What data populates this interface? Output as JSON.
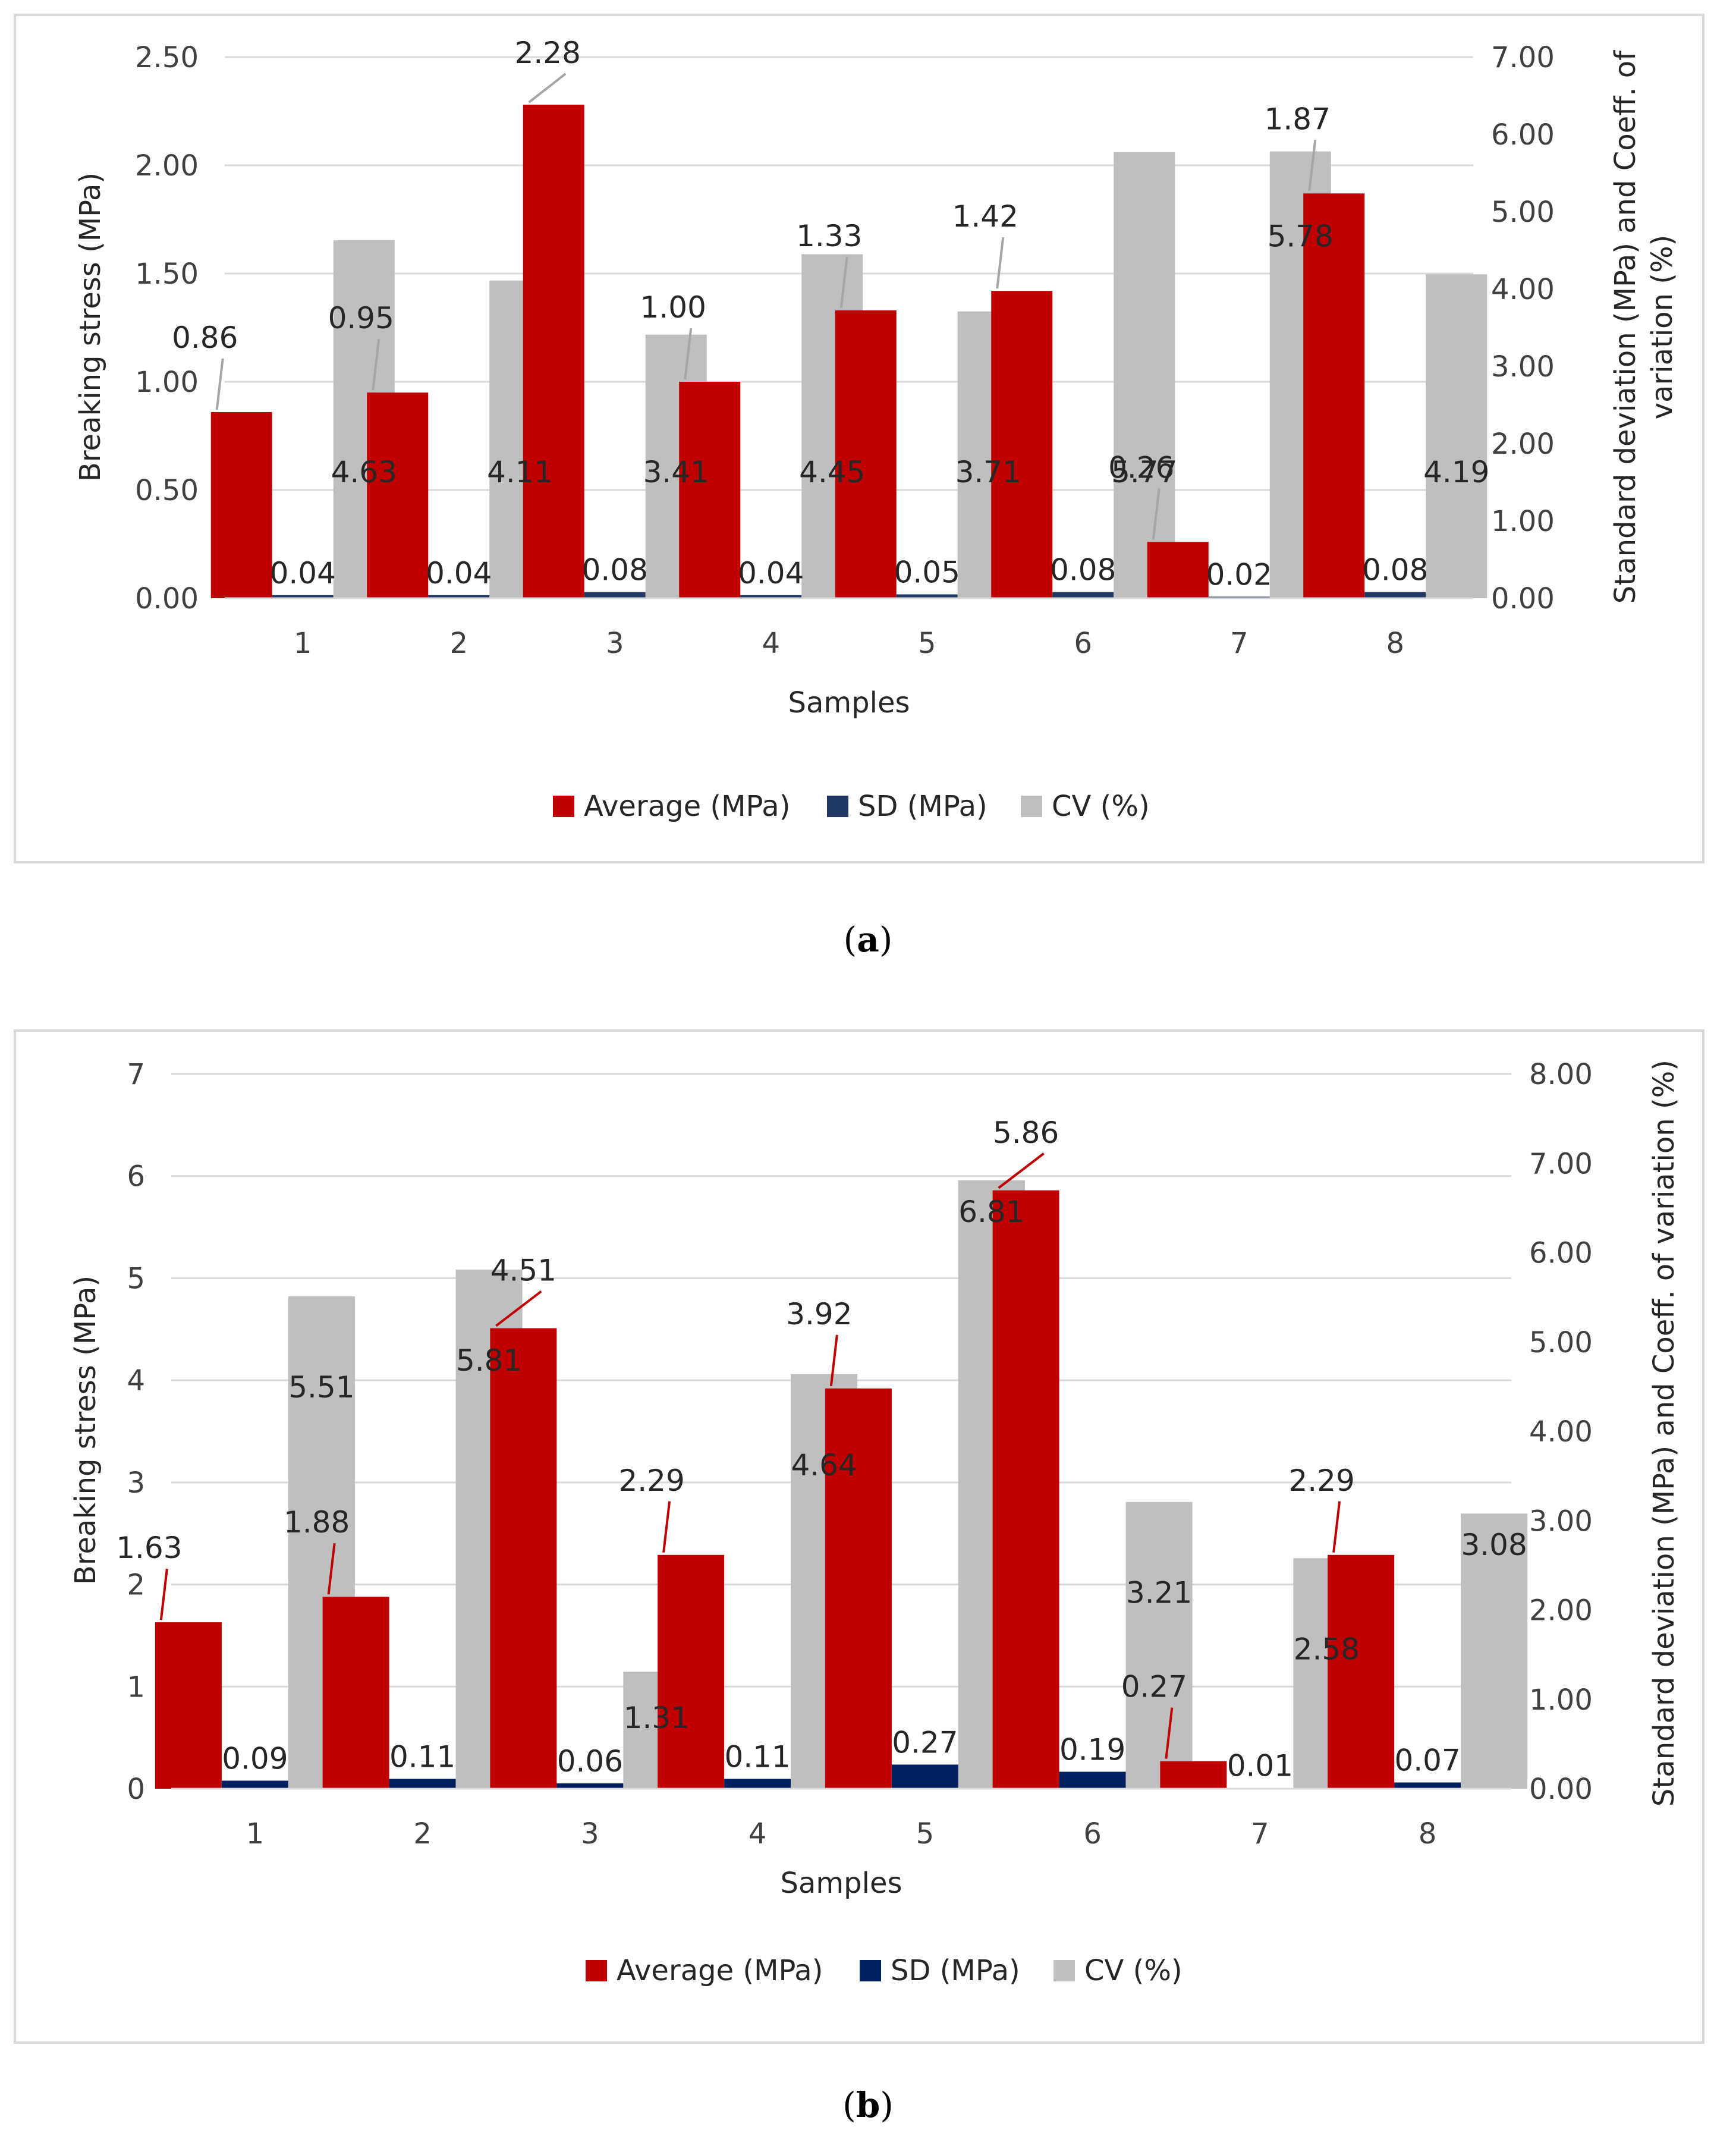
{
  "chart_data": [
    {
      "type": "bar",
      "panel": "a",
      "caption": "a",
      "categories": [
        "1",
        "2",
        "3",
        "4",
        "5",
        "6",
        "7",
        "8"
      ],
      "series": [
        {
          "name": "Average (MPa)",
          "axis": "left",
          "color": "#c00000",
          "values": [
            0.86,
            0.95,
            2.28,
            1.0,
            1.33,
            1.42,
            0.26,
            1.87
          ],
          "labels": [
            "0.86",
            "0.95",
            "2.28",
            "1.00",
            "1.33",
            "1.42",
            "0.26",
            "1.87"
          ]
        },
        {
          "name": "SD (MPa)",
          "axis": "right",
          "color": "#1f3864",
          "values": [
            0.04,
            0.04,
            0.08,
            0.04,
            0.05,
            0.08,
            0.02,
            0.08
          ],
          "labels": [
            "0.04",
            "0.04",
            "0.08",
            "0.04",
            "0.05",
            "0.08",
            "0.02",
            "0.08"
          ]
        },
        {
          "name": "CV (%)",
          "axis": "right",
          "color": "#bfbfbf",
          "values": [
            4.63,
            4.11,
            3.41,
            4.45,
            3.71,
            5.77,
            5.78,
            4.19
          ],
          "labels": [
            "4.63",
            "4.11",
            "3.41",
            "4.45",
            "3.71",
            "5.77",
            "5.78",
            "4.19"
          ]
        }
      ],
      "xlabel": "Samples",
      "ylabel": "Breaking stress (MPa)",
      "y2label_lines": [
        "Standard deviation (MPa) and Coeff. of",
        "variation (%)"
      ],
      "ylim": [
        0,
        2.5
      ],
      "y2lim": [
        0,
        7
      ],
      "yticks": [
        "0.00",
        "0.50",
        "1.00",
        "1.50",
        "2.00",
        "2.50"
      ],
      "y2ticks": [
        "0.00",
        "1.00",
        "2.00",
        "3.00",
        "4.00",
        "5.00",
        "6.00",
        "7.00"
      ],
      "leader_color": "#a6a6a6",
      "legend_position": "bottom",
      "grid": true
    },
    {
      "type": "bar",
      "panel": "b",
      "caption": "b",
      "categories": [
        "1",
        "2",
        "3",
        "4",
        "5",
        "6",
        "7",
        "8"
      ],
      "series": [
        {
          "name": "Average (MPa)",
          "axis": "left",
          "color": "#c00000",
          "values": [
            1.63,
            1.88,
            4.51,
            2.29,
            3.92,
            5.86,
            0.27,
            2.29
          ],
          "labels": [
            "1.63",
            "1.88",
            "4.51",
            "2.29",
            "3.92",
            "5.86",
            "0.27",
            "2.29"
          ]
        },
        {
          "name": "SD (MPa)",
          "axis": "right",
          "color": "#002060",
          "values": [
            0.09,
            0.11,
            0.06,
            0.11,
            0.27,
            0.19,
            0.01,
            0.07
          ],
          "labels": [
            "0.09",
            "0.11",
            "0.06",
            "0.11",
            "0.27",
            "0.19",
            "0.01",
            "0.07"
          ]
        },
        {
          "name": "CV (%)",
          "axis": "right",
          "color": "#bfbfbf",
          "values": [
            5.51,
            5.81,
            1.31,
            4.64,
            6.81,
            3.21,
            2.58,
            3.08
          ],
          "labels": [
            "5.51",
            "5.81",
            "1.31",
            "4.64",
            "6.81",
            "3.21",
            "2.58",
            "3.08"
          ]
        }
      ],
      "xlabel": "Samples",
      "ylabel": "Breaking stress (MPa)",
      "y2label_lines": [
        "Standard deviation (MPa) and Coeff. of variation (%)"
      ],
      "ylim": [
        0,
        7
      ],
      "y2lim": [
        0,
        8
      ],
      "yticks": [
        "0",
        "1",
        "2",
        "3",
        "4",
        "5",
        "6",
        "7"
      ],
      "y2ticks": [
        "0.00",
        "1.00",
        "2.00",
        "3.00",
        "4.00",
        "5.00",
        "6.00",
        "7.00",
        "8.00"
      ],
      "leader_color": "#c00000",
      "legend_position": "bottom",
      "grid": true
    }
  ]
}
